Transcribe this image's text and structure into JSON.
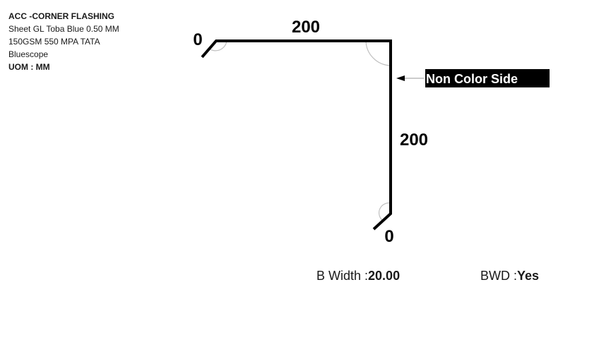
{
  "info": {
    "title": "ACC -CORNER FLASHING",
    "line1": "Sheet GL Toba Blue 0.50 MM",
    "line2": "150GSM 550 MPA TATA",
    "line3": "Bluescope",
    "uom_label": "UOM :",
    "uom_value": "MM"
  },
  "dimensions": {
    "top_left_angle": "0",
    "top_length": "200",
    "right_length": "200",
    "bottom_angle": "0"
  },
  "side_tag": "Non Color Side",
  "footer": {
    "b_width_label": "B Width :",
    "b_width_value": "20.00",
    "bwd_label": "BWD :",
    "bwd_value": "Yes"
  },
  "colors": {
    "line": "#000000",
    "arc": "#bfbfbf",
    "tag_bg": "#000000",
    "tag_text": "#ffffff"
  }
}
